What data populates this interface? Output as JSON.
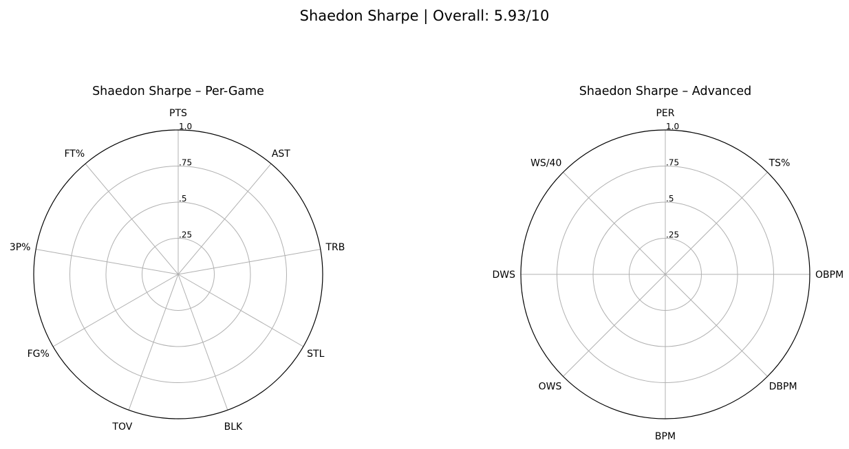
{
  "figure": {
    "suptitle": "Shaedon Sharpe | Overall: 5.93/10"
  },
  "chart_data": [
    {
      "type": "radar",
      "title": "Shaedon Sharpe – Per-Game",
      "categories": [
        "PTS",
        "AST",
        "TRB",
        "STL",
        "BLK",
        "TOV",
        "FG%",
        "3P%",
        "FT%"
      ],
      "radial_ticks": [
        ".25",
        ".5",
        ".75",
        "1.0"
      ],
      "radial_tick_values": [
        0.25,
        0.5,
        0.75,
        1.0
      ],
      "rlim": [
        0,
        1
      ],
      "grid": true,
      "series": [
        {
          "values": [
            0,
            0,
            0,
            0,
            0,
            0,
            0,
            0,
            0
          ]
        }
      ]
    },
    {
      "type": "radar",
      "title": "Shaedon Sharpe – Advanced",
      "categories": [
        "PER",
        "TS%",
        "OBPM",
        "DBPM",
        "BPM",
        "OWS",
        "DWS",
        "WS/40"
      ],
      "radial_ticks": [
        ".25",
        ".5",
        ".75",
        "1.0"
      ],
      "radial_tick_values": [
        0.25,
        0.5,
        0.75,
        1.0
      ],
      "rlim": [
        0,
        1
      ],
      "grid": true,
      "series": [
        {
          "values": [
            0,
            0,
            0,
            0,
            0,
            0,
            0,
            0
          ]
        }
      ]
    }
  ],
  "colors": {
    "grid": "#b0b0b0",
    "outer_ring": "#000000",
    "text": "#000000"
  }
}
